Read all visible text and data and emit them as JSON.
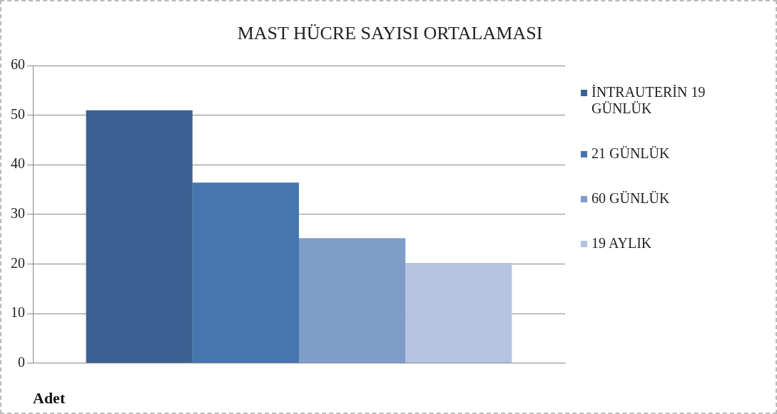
{
  "chart_data": {
    "type": "bar",
    "title": "MAST HÜCRE SAYISI ORTALAMASI",
    "xlabel": "Adet",
    "categories": [
      null
    ],
    "series": [
      {
        "name": "İNTRAUTERİN 19 GÜNLÜK",
        "color": "#3a6191",
        "values": [
          51
        ]
      },
      {
        "name": "21 GÜNLÜK",
        "color": "#4776ae",
        "values": [
          36.4
        ]
      },
      {
        "name": "60 GÜNLÜK",
        "color": "#7f9dc8",
        "values": [
          25.2
        ]
      },
      {
        "name": "19 AYLIK",
        "color": "#b4c4e0",
        "values": [
          20.2
        ]
      }
    ],
    "ylim": [
      0,
      60
    ],
    "yticks": [
      0,
      10,
      20,
      30,
      40,
      50,
      60
    ],
    "grid": "y",
    "legend": "right"
  }
}
